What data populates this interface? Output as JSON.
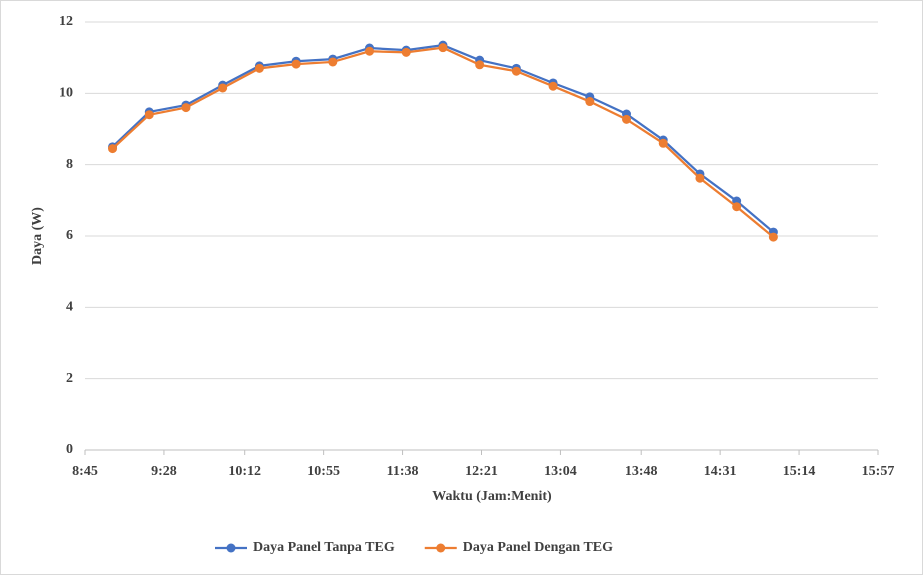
{
  "chart_data": {
    "type": "line",
    "x_label": "Waktu (Jam:Menit)",
    "y_label": "Daya (W)",
    "x": [
      "9:00",
      "9:20",
      "9:40",
      "10:00",
      "10:20",
      "10:40",
      "11:00",
      "11:20",
      "11:40",
      "12:00",
      "12:20",
      "12:40",
      "13:00",
      "13:20",
      "13:40",
      "14:00",
      "14:20",
      "14:40",
      "15:00"
    ],
    "series": [
      {
        "name": "Daya Panel Tanpa TEG",
        "color": "#4472c4",
        "values": [
          8.5,
          9.48,
          9.67,
          10.23,
          10.77,
          10.9,
          10.96,
          11.27,
          11.21,
          11.35,
          10.93,
          10.7,
          10.29,
          9.9,
          9.42,
          8.69,
          7.74,
          6.98,
          6.11
        ]
      },
      {
        "name": "Daya Panel Dengan TEG",
        "color": "#ed7d31",
        "values": [
          8.45,
          9.4,
          9.6,
          10.15,
          10.7,
          10.82,
          10.88,
          11.18,
          11.15,
          11.28,
          10.8,
          10.62,
          10.2,
          9.77,
          9.27,
          8.6,
          7.62,
          6.82,
          5.97
        ]
      }
    ],
    "xlim": [
      "8:45",
      "15:57"
    ],
    "xticks": [
      "8:45",
      "9:28",
      "10:12",
      "10:55",
      "11:38",
      "12:21",
      "13:04",
      "13:48",
      "14:31",
      "15:14",
      "15:57"
    ],
    "ylim": [
      0,
      12
    ],
    "yticks": [
      0,
      2,
      4,
      6,
      8,
      10,
      12
    ],
    "grid": true,
    "legend": "bottom"
  }
}
